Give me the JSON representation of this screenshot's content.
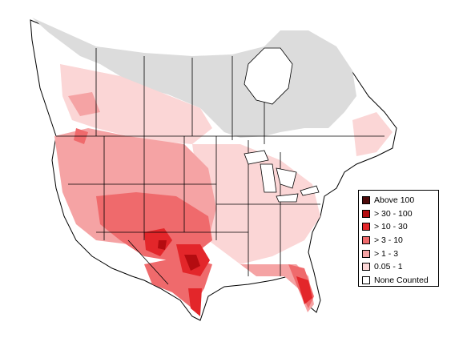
{
  "legend": {
    "items": [
      {
        "label": "Above 100",
        "color": "#4d0a0a"
      },
      {
        "label": "> 30 - 100",
        "color": "#b40c10"
      },
      {
        "label": "> 10 - 30",
        "color": "#e3262a"
      },
      {
        "label": "> 3 - 10",
        "color": "#ef6a6c"
      },
      {
        "label": "> 1 - 3",
        "color": "#f5a3a4"
      },
      {
        "label": "0.05 - 1",
        "color": "#fbd6d6"
      },
      {
        "label": "None Counted",
        "color": "#ffffff"
      }
    ]
  },
  "map": {
    "no_data_color": "#dcdcdc",
    "border_color": "#000000"
  }
}
